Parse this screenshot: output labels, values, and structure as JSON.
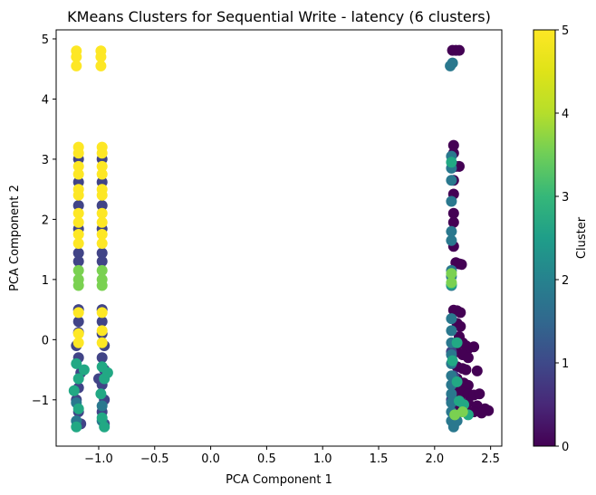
{
  "chart_data": {
    "type": "scatter",
    "title": "KMeans Clusters for Sequential Write - latency (6 clusters)",
    "xlabel": "PCA Component 1",
    "ylabel": "PCA Component 2",
    "xlim": [
      -1.38,
      2.6
    ],
    "ylim": [
      -1.77,
      5.15
    ],
    "x_ticks": [
      -1.0,
      -0.5,
      0.0,
      0.5,
      1.0,
      1.5,
      2.0,
      2.5
    ],
    "x_tick_labels": [
      "−1.0",
      "−0.5",
      "0.0",
      "0.5",
      "1.0",
      "1.5",
      "2.0",
      "2.5"
    ],
    "y_ticks": [
      -1,
      0,
      1,
      2,
      3,
      4,
      5
    ],
    "y_tick_labels": [
      "−1",
      "0",
      "1",
      "2",
      "3",
      "4",
      "5"
    ],
    "grid": false,
    "colormap": "viridis",
    "colorbar": {
      "label": "Cluster",
      "range": [
        0,
        5
      ],
      "ticks": [
        0,
        1,
        2,
        3,
        4,
        5
      ],
      "tick_labels": [
        "0",
        "1",
        "2",
        "3",
        "4",
        "5"
      ]
    },
    "clusters": [
      {
        "cluster": 0,
        "color": "#440154",
        "points": [
          [
            2.16,
            4.81
          ],
          [
            2.19,
            4.81
          ],
          [
            2.22,
            4.81
          ],
          [
            2.17,
            3.23
          ],
          [
            2.17,
            3.1
          ],
          [
            2.19,
            2.88
          ],
          [
            2.22,
            2.88
          ],
          [
            2.17,
            2.65
          ],
          [
            2.17,
            2.42
          ],
          [
            2.17,
            2.1
          ],
          [
            2.17,
            1.95
          ],
          [
            2.17,
            1.55
          ],
          [
            2.19,
            1.28
          ],
          [
            2.22,
            1.26
          ],
          [
            2.24,
            1.25
          ],
          [
            2.17,
            0.49
          ],
          [
            2.2,
            0.48
          ],
          [
            2.23,
            0.45
          ],
          [
            2.2,
            0.27
          ],
          [
            2.23,
            0.22
          ],
          [
            2.22,
            0.05
          ],
          [
            2.25,
            -0.05
          ],
          [
            2.28,
            -0.1
          ],
          [
            2.3,
            -0.15
          ],
          [
            2.35,
            -0.12
          ],
          [
            2.2,
            -0.2
          ],
          [
            2.25,
            -0.25
          ],
          [
            2.3,
            -0.3
          ],
          [
            2.2,
            -0.45
          ],
          [
            2.25,
            -0.48
          ],
          [
            2.28,
            -0.5
          ],
          [
            2.38,
            -0.52
          ],
          [
            2.2,
            -0.65
          ],
          [
            2.26,
            -0.72
          ],
          [
            2.3,
            -0.76
          ],
          [
            2.2,
            -0.85
          ],
          [
            2.25,
            -0.88
          ],
          [
            2.3,
            -0.9
          ],
          [
            2.35,
            -0.92
          ],
          [
            2.4,
            -0.9
          ],
          [
            2.22,
            -0.98
          ],
          [
            2.3,
            -1.05
          ],
          [
            2.38,
            -1.1
          ],
          [
            2.45,
            -1.15
          ],
          [
            2.48,
            -1.18
          ],
          [
            2.42,
            -1.22
          ],
          [
            2.35,
            -1.2
          ],
          [
            2.28,
            -1.18
          ],
          [
            2.2,
            -1.12
          ],
          [
            2.25,
            -1.15
          ]
        ]
      },
      {
        "cluster": 1,
        "color": "#414487",
        "points": [
          [
            -1.18,
            3.0
          ],
          [
            -1.18,
            2.62
          ],
          [
            -1.18,
            2.23
          ],
          [
            -1.18,
            1.84
          ],
          [
            -1.18,
            1.44
          ],
          [
            -1.18,
            1.3
          ],
          [
            -1.18,
            0.5
          ],
          [
            -1.18,
            0.3
          ],
          [
            -1.18,
            0.12
          ],
          [
            -1.2,
            -0.1
          ],
          [
            -1.18,
            -0.3
          ],
          [
            -1.16,
            -0.55
          ],
          [
            -1.18,
            -0.8
          ],
          [
            -1.2,
            -1.0
          ],
          [
            -1.18,
            -1.2
          ],
          [
            -1.16,
            -1.4
          ],
          [
            -0.97,
            3.0
          ],
          [
            -0.97,
            2.62
          ],
          [
            -0.97,
            2.23
          ],
          [
            -0.97,
            1.84
          ],
          [
            -0.97,
            1.44
          ],
          [
            -0.97,
            1.3
          ],
          [
            -0.97,
            0.5
          ],
          [
            -0.97,
            0.3
          ],
          [
            -0.97,
            0.1
          ],
          [
            -0.95,
            -0.1
          ],
          [
            -0.97,
            -0.3
          ],
          [
            -0.95,
            -0.5
          ],
          [
            -0.93,
            -0.55
          ],
          [
            -0.97,
            -0.75
          ],
          [
            -0.95,
            -1.0
          ],
          [
            -0.97,
            -1.2
          ],
          [
            -0.95,
            -1.4
          ],
          [
            -1.0,
            -0.65
          ],
          [
            2.15,
            -0.2
          ],
          [
            2.17,
            -0.6
          ],
          [
            2.15,
            -1.0
          ],
          [
            2.19,
            -1.3
          ]
        ]
      },
      {
        "cluster": 2,
        "color": "#2a788e",
        "points": [
          [
            2.14,
            4.55
          ],
          [
            2.16,
            4.6
          ],
          [
            2.15,
            3.05
          ],
          [
            2.15,
            2.85
          ],
          [
            2.15,
            2.65
          ],
          [
            2.15,
            2.3
          ],
          [
            2.15,
            1.8
          ],
          [
            2.15,
            1.65
          ],
          [
            2.15,
            1.15
          ],
          [
            2.15,
            1.05
          ],
          [
            2.15,
            0.9
          ],
          [
            2.15,
            0.35
          ],
          [
            2.15,
            0.15
          ],
          [
            2.15,
            -0.05
          ],
          [
            2.15,
            -0.25
          ],
          [
            2.15,
            -0.4
          ],
          [
            2.15,
            -0.6
          ],
          [
            2.15,
            -0.75
          ],
          [
            2.15,
            -0.9
          ],
          [
            2.15,
            -1.05
          ],
          [
            2.15,
            -1.2
          ],
          [
            2.15,
            -1.35
          ],
          [
            2.17,
            -1.45
          ],
          [
            2.2,
            -1.35
          ],
          [
            -1.2,
            -1.05
          ],
          [
            -1.2,
            -1.35
          ],
          [
            -0.97,
            -1.35
          ],
          [
            -0.97,
            -1.1
          ]
        ]
      },
      {
        "cluster": 3,
        "color": "#22a884",
        "points": [
          [
            2.15,
            2.95
          ],
          [
            2.15,
            0.92
          ],
          [
            2.2,
            -0.05
          ],
          [
            2.16,
            -0.35
          ],
          [
            2.2,
            -0.7
          ],
          [
            2.22,
            -1.02
          ],
          [
            2.26,
            -1.08
          ],
          [
            2.3,
            -1.25
          ],
          [
            -1.2,
            -0.4
          ],
          [
            -1.18,
            -0.65
          ],
          [
            -1.22,
            -0.85
          ],
          [
            -1.18,
            -1.15
          ],
          [
            -1.2,
            -1.45
          ],
          [
            -1.13,
            -0.5
          ],
          [
            -0.97,
            -0.45
          ],
          [
            -0.95,
            -0.65
          ],
          [
            -0.98,
            -0.9
          ],
          [
            -0.97,
            -1.3
          ],
          [
            -0.95,
            -1.45
          ],
          [
            -0.92,
            -0.55
          ]
        ]
      },
      {
        "cluster": 4,
        "color": "#7ad151",
        "points": [
          [
            -1.18,
            1.15
          ],
          [
            -1.18,
            1.0
          ],
          [
            -1.18,
            0.9
          ],
          [
            -0.97,
            1.15
          ],
          [
            -0.97,
            1.0
          ],
          [
            -0.97,
            0.9
          ],
          [
            2.15,
            1.1
          ],
          [
            2.15,
            0.95
          ],
          [
            2.18,
            -1.25
          ],
          [
            2.25,
            -1.2
          ]
        ]
      },
      {
        "cluster": 5,
        "color": "#fde725",
        "points": [
          [
            -1.2,
            4.8
          ],
          [
            -1.2,
            4.7
          ],
          [
            -1.2,
            4.55
          ],
          [
            -0.98,
            4.8
          ],
          [
            -0.98,
            4.7
          ],
          [
            -0.98,
            4.55
          ],
          [
            -1.18,
            3.2
          ],
          [
            -1.18,
            3.1
          ],
          [
            -1.18,
            2.88
          ],
          [
            -1.18,
            2.75
          ],
          [
            -1.18,
            2.5
          ],
          [
            -1.18,
            2.4
          ],
          [
            -1.18,
            2.1
          ],
          [
            -1.18,
            1.95
          ],
          [
            -1.18,
            1.75
          ],
          [
            -1.18,
            1.6
          ],
          [
            -0.97,
            3.2
          ],
          [
            -0.97,
            3.1
          ],
          [
            -0.97,
            2.88
          ],
          [
            -0.97,
            2.75
          ],
          [
            -0.97,
            2.5
          ],
          [
            -0.97,
            2.4
          ],
          [
            -0.97,
            2.1
          ],
          [
            -0.97,
            1.95
          ],
          [
            -0.97,
            1.75
          ],
          [
            -0.97,
            1.6
          ],
          [
            -1.18,
            0.45
          ],
          [
            -1.18,
            0.1
          ],
          [
            -1.18,
            -0.05
          ],
          [
            -0.97,
            0.45
          ],
          [
            -0.97,
            0.15
          ],
          [
            -0.97,
            -0.05
          ]
        ]
      }
    ]
  }
}
